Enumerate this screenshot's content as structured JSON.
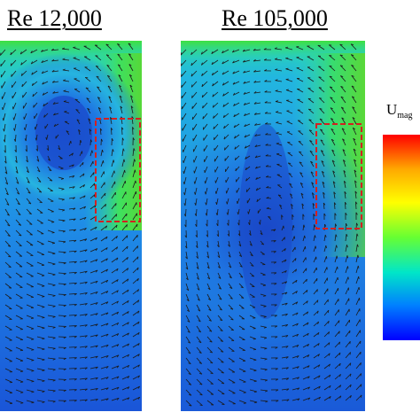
{
  "panels": [
    {
      "title": "Re 12,000"
    },
    {
      "title": "Re 105,000"
    }
  ],
  "colorbar": {
    "label_main": "U",
    "label_sub": "mag",
    "colors": [
      "#ff0000",
      "#ffaa00",
      "#ffff00",
      "#66ff33",
      "#00e6c8",
      "#0080ff",
      "#0000ff"
    ]
  },
  "colors": {
    "field_low": "#1f56d6",
    "field_mid": "#1fc6d8",
    "field_high": "#2bd645",
    "highlight_box": "#d42020",
    "vectors": "#1a1a1a"
  }
}
